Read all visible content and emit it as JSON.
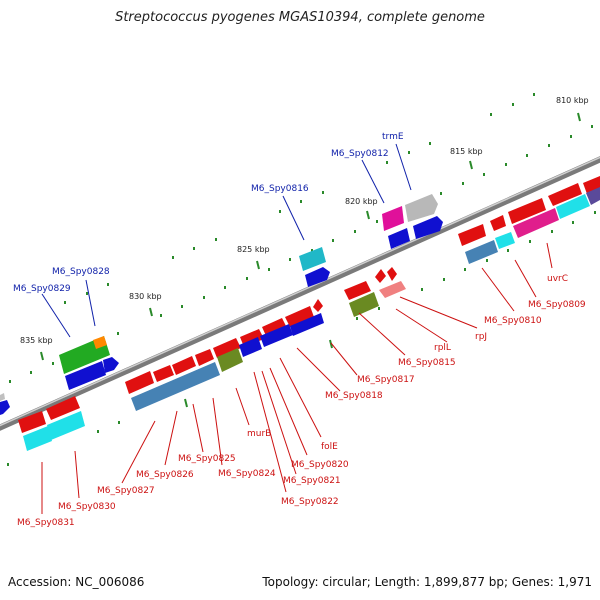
{
  "title": "Streptococcus pyogenes MGAS10394, complete genome",
  "footer": {
    "accession": "Accession: NC_006086",
    "summary": "Topology: circular; Length: 1,899,877 bp; Genes: 1,971"
  },
  "colors": {
    "backbone": "#888888",
    "tick": "#2a8a2a",
    "gene_label_red": "#cc1111",
    "gene_label_blue": "#1122aa",
    "kbp_label": "#222222"
  },
  "kbp_labels": [
    "810 kbp",
    "815 kbp",
    "820 kbp",
    "825 kbp",
    "830 kbp",
    "835 kbp"
  ],
  "gene_labels_blue": [
    "trmE",
    "M6_Spy0812",
    "M6_Spy0816",
    "M6_Spy0828",
    "M6_Spy0829"
  ],
  "gene_labels_red": [
    "uvrC",
    "M6_Spy0809",
    "M6_Spy0810",
    "rpJ",
    "rplL",
    "M6_Spy0815",
    "M6_Spy0817",
    "M6_Spy0818",
    "folE",
    "M6_Spy0820",
    "M6_Spy0821",
    "M6_Spy0822",
    "murB",
    "M6_Spy0824",
    "M6_Spy0825",
    "M6_Spy0826",
    "M6_Spy0827",
    "M6_Spy0830",
    "M6_Spy0831"
  ]
}
